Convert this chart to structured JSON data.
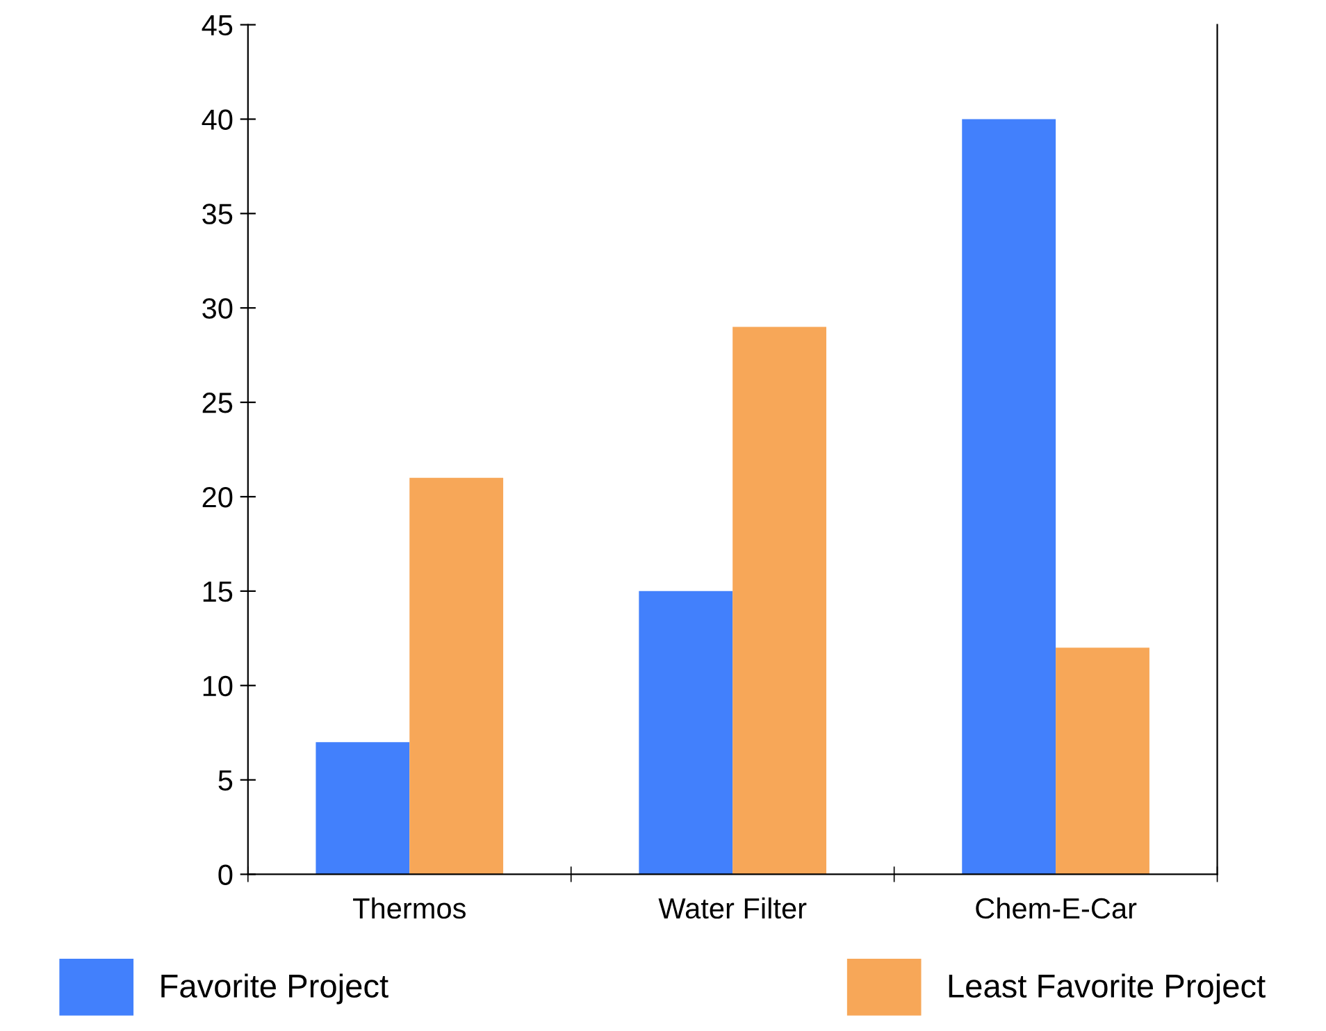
{
  "chart_data": {
    "type": "bar",
    "categories": [
      "Thermos",
      "Water Filter",
      "Chem-E-Car"
    ],
    "series": [
      {
        "name": "Favorite Project",
        "color": "#4280fc",
        "values": [
          7,
          15,
          40
        ]
      },
      {
        "name": "Least Favorite Project",
        "color": "#f7a758",
        "values": [
          21,
          29,
          12
        ]
      }
    ],
    "ylim": [
      0,
      45
    ],
    "yticks": [
      0,
      5,
      10,
      15,
      20,
      25,
      30,
      35,
      40,
      45
    ],
    "grid": false,
    "legend": "bottom"
  }
}
